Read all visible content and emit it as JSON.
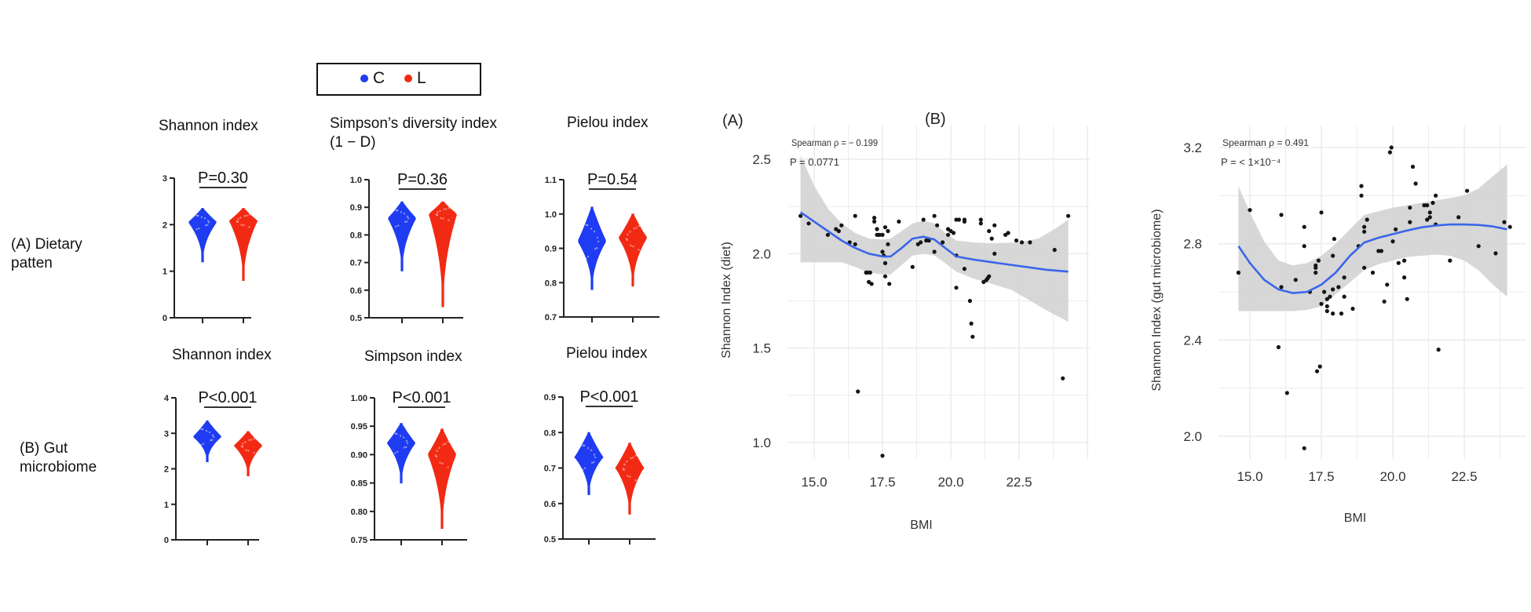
{
  "colors": {
    "C": "#1f3cf2",
    "L": "#f22a14",
    "smooth": "#3a66e8",
    "band": "#d3d3d3",
    "point": "#141414",
    "grid": "#ececec"
  },
  "legend": {
    "items": [
      {
        "label": "C",
        "color": "#1f3cf2"
      },
      {
        "label": "L",
        "color": "#f22a14"
      }
    ]
  },
  "row_labels": {
    "a": "(A) Dietary\npatten",
    "a_line1": "(A) Dietary",
    "a_line2": "patten",
    "b_line1": "(B) Gut",
    "b_line2": "microbiome"
  },
  "chart_data": [
    {
      "type": "violin",
      "panel": "A-1",
      "title": "Shannon index",
      "pvalue": "P=0.30",
      "ylim": [
        0,
        3
      ],
      "yticks": [
        "0",
        "1",
        "2",
        "3"
      ],
      "categories": [
        "C",
        "L"
      ],
      "series": [
        {
          "name": "C",
          "min": 1.2,
          "max": 2.35,
          "median": 2.05,
          "peak": 2.05
        },
        {
          "name": "L",
          "min": 0.8,
          "max": 2.35,
          "median": 2.05,
          "peak": 2.08
        }
      ]
    },
    {
      "type": "violin",
      "panel": "A-2",
      "title": "Simpson’s diversity index",
      "title_line2": "(1 − D)",
      "pvalue": "P=0.36",
      "ylim": [
        0.5,
        1.0
      ],
      "yticks": [
        "0.5",
        "0.6",
        "0.7",
        "0.8",
        "0.9",
        "1.0"
      ],
      "categories": [
        "C",
        "L"
      ],
      "series": [
        {
          "name": "C",
          "min": 0.67,
          "max": 0.92,
          "median": 0.85,
          "peak": 0.86
        },
        {
          "name": "L",
          "min": 0.54,
          "max": 0.92,
          "median": 0.86,
          "peak": 0.875
        }
      ]
    },
    {
      "type": "violin",
      "panel": "A-3",
      "title": "Pielou index",
      "pvalue": "P=0.54",
      "ylim": [
        0.7,
        1.1
      ],
      "yticks": [
        "0.7",
        "0.8",
        "0.9",
        "1.0",
        "1.1"
      ],
      "categories": [
        "C",
        "L"
      ],
      "series": [
        {
          "name": "C",
          "min": 0.78,
          "max": 1.02,
          "median": 0.91,
          "peak": 0.92
        },
        {
          "name": "L",
          "min": 0.79,
          "max": 1.0,
          "median": 0.92,
          "peak": 0.93
        }
      ]
    },
    {
      "type": "violin",
      "panel": "B-1",
      "title": "Shannon index",
      "pvalue": "P<0.001",
      "ylim": [
        0,
        4
      ],
      "yticks": [
        "0",
        "1",
        "2",
        "3",
        "4"
      ],
      "categories": [
        "C",
        "L"
      ],
      "series": [
        {
          "name": "C",
          "min": 2.2,
          "max": 3.35,
          "median": 2.85,
          "peak": 2.9
        },
        {
          "name": "L",
          "min": 1.8,
          "max": 3.05,
          "median": 2.6,
          "peak": 2.65
        }
      ]
    },
    {
      "type": "violin",
      "panel": "B-2",
      "title": "Simpson index",
      "pvalue": "P<0.001",
      "ylim": [
        0.75,
        1.0
      ],
      "yticks": [
        "0.75",
        "0.80",
        "0.85",
        "0.90",
        "0.95",
        "1.00"
      ],
      "categories": [
        "C",
        "L"
      ],
      "series": [
        {
          "name": "C",
          "min": 0.85,
          "max": 0.955,
          "median": 0.915,
          "peak": 0.92
        },
        {
          "name": "L",
          "min": 0.77,
          "max": 0.945,
          "median": 0.89,
          "peak": 0.9
        }
      ]
    },
    {
      "type": "violin",
      "panel": "B-3",
      "title": "Pielou index",
      "pvalue": "P<0.001",
      "ylim": [
        0.5,
        0.9
      ],
      "yticks": [
        "0.5",
        "0.6",
        "0.7",
        "0.8",
        "0.9"
      ],
      "categories": [
        "C",
        "L"
      ],
      "series": [
        {
          "name": "C",
          "min": 0.625,
          "max": 0.8,
          "median": 0.73,
          "peak": 0.73
        },
        {
          "name": "L",
          "min": 0.57,
          "max": 0.77,
          "median": 0.68,
          "peak": 0.7
        }
      ]
    },
    {
      "type": "scatter",
      "panel": "(A)",
      "label": "(A)",
      "annotation_line1": "Spearman ρ = − 0.199",
      "annotation_line2": "P = 0.0771",
      "xlabel": "BMI",
      "ylabel": "Shannon Index (diet)",
      "xlim": [
        14.0,
        24.5
      ],
      "ylim": [
        0.85,
        2.6
      ],
      "xticks": [
        "15.0",
        "17.5",
        "20.0",
        "22.5"
      ],
      "xtick_values": [
        15.0,
        17.5,
        20.0,
        22.5
      ],
      "yticks": [
        "1.0",
        "1.5",
        "2.0",
        "2.5"
      ],
      "ytick_values": [
        1.0,
        1.5,
        2.0,
        2.5
      ],
      "smooth": [
        [
          14.5,
          2.22
        ],
        [
          15.0,
          2.17
        ],
        [
          15.5,
          2.12
        ],
        [
          16.0,
          2.07
        ],
        [
          16.5,
          2.03
        ],
        [
          17.0,
          2.0
        ],
        [
          17.5,
          1.985
        ],
        [
          17.8,
          1.985
        ],
        [
          18.2,
          2.03
        ],
        [
          18.6,
          2.08
        ],
        [
          19.0,
          2.09
        ],
        [
          19.4,
          2.075
        ],
        [
          19.8,
          2.03
        ],
        [
          20.2,
          1.985
        ],
        [
          20.8,
          1.97
        ],
        [
          21.5,
          1.955
        ],
        [
          22.5,
          1.935
        ],
        [
          23.5,
          1.915
        ],
        [
          24.3,
          1.905
        ]
      ],
      "band_upper": [
        [
          14.5,
          2.52
        ],
        [
          15.0,
          2.36
        ],
        [
          15.5,
          2.24
        ],
        [
          16.0,
          2.16
        ],
        [
          16.5,
          2.11
        ],
        [
          17.0,
          2.08
        ],
        [
          17.5,
          2.075
        ],
        [
          17.8,
          2.08
        ],
        [
          18.2,
          2.12
        ],
        [
          18.6,
          2.16
        ],
        [
          19.0,
          2.175
        ],
        [
          19.4,
          2.16
        ],
        [
          19.8,
          2.11
        ],
        [
          20.2,
          2.07
        ],
        [
          20.8,
          2.06
        ],
        [
          21.5,
          2.055
        ],
        [
          22.5,
          2.06
        ],
        [
          23.2,
          2.08
        ],
        [
          23.8,
          2.13
        ],
        [
          24.3,
          2.18
        ]
      ],
      "band_lower": [
        [
          14.5,
          1.955
        ],
        [
          15.0,
          1.955
        ],
        [
          15.5,
          1.955
        ],
        [
          16.0,
          1.955
        ],
        [
          16.5,
          1.93
        ],
        [
          17.0,
          1.9
        ],
        [
          17.5,
          1.89
        ],
        [
          17.8,
          1.89
        ],
        [
          18.2,
          1.94
        ],
        [
          18.6,
          1.99
        ],
        [
          19.0,
          2.0
        ],
        [
          19.4,
          1.99
        ],
        [
          19.8,
          1.95
        ],
        [
          20.2,
          1.905
        ],
        [
          20.8,
          1.87
        ],
        [
          21.5,
          1.84
        ],
        [
          22.2,
          1.81
        ],
        [
          22.8,
          1.76
        ],
        [
          23.5,
          1.7
        ],
        [
          24.3,
          1.64
        ]
      ],
      "points": [
        [
          14.5,
          2.2
        ],
        [
          14.8,
          2.16
        ],
        [
          15.5,
          2.1
        ],
        [
          15.8,
          2.13
        ],
        [
          15.9,
          2.12
        ],
        [
          16.0,
          2.15
        ],
        [
          16.5,
          2.2
        ],
        [
          16.3,
          2.06
        ],
        [
          16.5,
          2.05
        ],
        [
          16.6,
          1.27
        ],
        [
          16.9,
          1.9
        ],
        [
          16.95,
          1.9
        ],
        [
          17.05,
          1.9
        ],
        [
          17.0,
          1.85
        ],
        [
          17.1,
          1.84
        ],
        [
          17.2,
          2.19
        ],
        [
          17.2,
          2.17
        ],
        [
          17.3,
          2.13
        ],
        [
          17.3,
          2.1
        ],
        [
          17.35,
          2.1
        ],
        [
          17.4,
          2.1
        ],
        [
          17.5,
          2.1
        ],
        [
          17.5,
          2.01
        ],
        [
          17.55,
          1.99
        ],
        [
          17.6,
          2.14
        ],
        [
          17.6,
          1.95
        ],
        [
          17.6,
          1.88
        ],
        [
          17.7,
          2.12
        ],
        [
          17.7,
          2.05
        ],
        [
          17.75,
          1.84
        ],
        [
          17.5,
          0.93
        ],
        [
          18.1,
          2.17
        ],
        [
          18.6,
          1.93
        ],
        [
          18.8,
          2.05
        ],
        [
          18.9,
          2.06
        ],
        [
          19.0,
          2.18
        ],
        [
          19.1,
          2.07
        ],
        [
          19.2,
          2.07
        ],
        [
          19.4,
          2.2
        ],
        [
          19.4,
          2.01
        ],
        [
          19.5,
          2.15
        ],
        [
          19.7,
          2.06
        ],
        [
          19.9,
          2.1
        ],
        [
          19.9,
          2.13
        ],
        [
          20.0,
          2.12
        ],
        [
          20.1,
          2.11
        ],
        [
          20.2,
          2.18
        ],
        [
          20.3,
          2.18
        ],
        [
          20.5,
          2.18
        ],
        [
          20.5,
          2.17
        ],
        [
          20.2,
          1.99
        ],
        [
          20.2,
          1.82
        ],
        [
          20.5,
          1.92
        ],
        [
          20.7,
          1.75
        ],
        [
          20.75,
          1.63
        ],
        [
          20.8,
          1.56
        ],
        [
          21.2,
          1.85
        ],
        [
          21.3,
          1.86
        ],
        [
          21.35,
          1.87
        ],
        [
          21.4,
          1.88
        ],
        [
          21.1,
          2.18
        ],
        [
          21.1,
          2.16
        ],
        [
          21.4,
          2.12
        ],
        [
          21.5,
          2.08
        ],
        [
          21.6,
          2.0
        ],
        [
          21.6,
          2.15
        ],
        [
          22.0,
          2.1
        ],
        [
          22.1,
          2.11
        ],
        [
          22.4,
          2.07
        ],
        [
          22.6,
          2.06
        ],
        [
          22.9,
          2.06
        ],
        [
          23.8,
          2.02
        ],
        [
          24.1,
          1.34
        ],
        [
          24.3,
          2.2
        ]
      ]
    },
    {
      "type": "scatter",
      "panel": "(B)",
      "label": "(B)",
      "annotation_line1": "Spearman ρ = 0.491",
      "annotation_line2": "P = < 1×10⁻⁴",
      "xlabel": "BMI",
      "ylabel": "Shannon Index (gut microbiome)",
      "xlim": [
        14.0,
        24.5
      ],
      "ylim": [
        1.9,
        3.28
      ],
      "xticks": [
        "15.0",
        "17.5",
        "20.0",
        "22.5"
      ],
      "xtick_values": [
        15.0,
        17.5,
        20.0,
        22.5
      ],
      "yticks": [
        "2.0",
        "2.4",
        "2.8",
        "3.2"
      ],
      "ytick_values": [
        2.0,
        2.4,
        2.8,
        3.2
      ],
      "smooth": [
        [
          14.6,
          2.79
        ],
        [
          15.0,
          2.72
        ],
        [
          15.5,
          2.65
        ],
        [
          16.0,
          2.61
        ],
        [
          16.5,
          2.595
        ],
        [
          17.0,
          2.6
        ],
        [
          17.5,
          2.63
        ],
        [
          18.0,
          2.68
        ],
        [
          18.5,
          2.75
        ],
        [
          19.0,
          2.805
        ],
        [
          19.5,
          2.825
        ],
        [
          20.0,
          2.84
        ],
        [
          20.5,
          2.855
        ],
        [
          21.0,
          2.868
        ],
        [
          21.5,
          2.876
        ],
        [
          22.0,
          2.88
        ],
        [
          22.5,
          2.88
        ],
        [
          23.0,
          2.878
        ],
        [
          23.5,
          2.872
        ],
        [
          24.0,
          2.86
        ]
      ],
      "band_upper": [
        [
          14.6,
          3.04
        ],
        [
          15.0,
          2.93
        ],
        [
          15.5,
          2.81
        ],
        [
          16.0,
          2.73
        ],
        [
          16.5,
          2.71
        ],
        [
          17.0,
          2.72
        ],
        [
          17.5,
          2.75
        ],
        [
          18.0,
          2.8
        ],
        [
          18.5,
          2.86
        ],
        [
          19.0,
          2.92
        ],
        [
          19.5,
          2.935
        ],
        [
          20.0,
          2.95
        ],
        [
          20.5,
          2.96
        ],
        [
          21.0,
          2.97
        ],
        [
          21.5,
          2.98
        ],
        [
          22.0,
          2.99
        ],
        [
          22.5,
          3.0
        ],
        [
          23.0,
          3.03
        ],
        [
          23.5,
          3.08
        ],
        [
          24.0,
          3.13
        ]
      ],
      "band_lower": [
        [
          14.6,
          2.52
        ],
        [
          15.0,
          2.52
        ],
        [
          15.5,
          2.52
        ],
        [
          16.0,
          2.52
        ],
        [
          16.5,
          2.52
        ],
        [
          17.0,
          2.525
        ],
        [
          17.5,
          2.54
        ],
        [
          18.0,
          2.59
        ],
        [
          18.5,
          2.64
        ],
        [
          19.0,
          2.69
        ],
        [
          19.5,
          2.715
        ],
        [
          20.0,
          2.73
        ],
        [
          20.5,
          2.745
        ],
        [
          21.0,
          2.75
        ],
        [
          21.5,
          2.755
        ],
        [
          22.0,
          2.75
        ],
        [
          22.5,
          2.73
        ],
        [
          23.0,
          2.69
        ],
        [
          23.5,
          2.63
        ],
        [
          24.0,
          2.58
        ]
      ],
      "points": [
        [
          14.6,
          2.68
        ],
        [
          15.0,
          2.94
        ],
        [
          16.1,
          2.92
        ],
        [
          16.9,
          2.87
        ],
        [
          17.5,
          2.93
        ],
        [
          16.1,
          2.62
        ],
        [
          16.0,
          2.37
        ],
        [
          16.3,
          2.18
        ],
        [
          16.6,
          2.65
        ],
        [
          16.9,
          1.95
        ],
        [
          16.9,
          2.79
        ],
        [
          17.1,
          2.6
        ],
        [
          17.3,
          2.71
        ],
        [
          17.3,
          2.7
        ],
        [
          17.3,
          2.68
        ],
        [
          17.4,
          2.73
        ],
        [
          17.35,
          2.27
        ],
        [
          17.45,
          2.29
        ],
        [
          17.5,
          2.55
        ],
        [
          17.6,
          2.6
        ],
        [
          17.7,
          2.57
        ],
        [
          17.7,
          2.52
        ],
        [
          17.8,
          2.58
        ],
        [
          17.9,
          2.51
        ],
        [
          17.9,
          2.75
        ],
        [
          17.95,
          2.82
        ],
        [
          17.9,
          2.61
        ],
        [
          17.7,
          2.54
        ],
        [
          18.1,
          2.62
        ],
        [
          18.2,
          2.51
        ],
        [
          18.3,
          2.66
        ],
        [
          18.3,
          2.58
        ],
        [
          18.6,
          2.53
        ],
        [
          18.9,
          3.04
        ],
        [
          18.9,
          3.0
        ],
        [
          18.8,
          2.79
        ],
        [
          19.0,
          2.85
        ],
        [
          19.0,
          2.87
        ],
        [
          19.1,
          2.9
        ],
        [
          19.0,
          2.7
        ],
        [
          19.3,
          2.68
        ],
        [
          19.5,
          2.77
        ],
        [
          19.6,
          2.77
        ],
        [
          19.7,
          2.56
        ],
        [
          19.8,
          2.63
        ],
        [
          19.9,
          3.18
        ],
        [
          19.95,
          3.2
        ],
        [
          20.0,
          2.81
        ],
        [
          20.1,
          2.86
        ],
        [
          20.2,
          2.72
        ],
        [
          20.4,
          2.73
        ],
        [
          20.4,
          2.66
        ],
        [
          20.5,
          2.57
        ],
        [
          20.6,
          2.89
        ],
        [
          20.6,
          2.95
        ],
        [
          20.7,
          3.12
        ],
        [
          20.8,
          3.05
        ],
        [
          21.1,
          2.96
        ],
        [
          21.2,
          2.96
        ],
        [
          21.2,
          2.9
        ],
        [
          21.3,
          2.91
        ],
        [
          21.3,
          2.93
        ],
        [
          21.4,
          2.97
        ],
        [
          21.5,
          3.0
        ],
        [
          21.5,
          2.88
        ],
        [
          21.6,
          2.36
        ],
        [
          22.0,
          2.73
        ],
        [
          22.3,
          2.91
        ],
        [
          22.6,
          3.02
        ],
        [
          23.0,
          2.79
        ],
        [
          23.6,
          2.76
        ],
        [
          23.9,
          2.89
        ],
        [
          24.1,
          2.87
        ]
      ]
    }
  ]
}
